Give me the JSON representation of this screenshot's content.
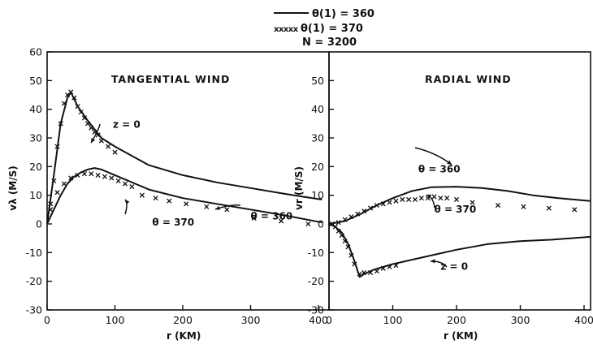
{
  "legend": {
    "entries": [
      {
        "label": "θ(1) = 360",
        "style": "solid line"
      },
      {
        "label": "θ(1) = 370",
        "style": "x markers"
      }
    ],
    "note": "N = 3200"
  },
  "chart_data": [
    {
      "type": "line",
      "title": "TANGENTIAL WIND",
      "xlabel": "r (KM)",
      "ylabel": "vλ (M/S)",
      "xlim": [
        0,
        450
      ],
      "ylim": [
        -30,
        60
      ],
      "xticks": [
        0,
        100,
        200,
        300,
        400
      ],
      "yticks": [
        -30,
        -20,
        -10,
        0,
        10,
        20,
        30,
        40,
        50,
        60
      ],
      "annotations": [
        {
          "text": "z = 0",
          "x": 97,
          "y": 33.5
        },
        {
          "text": "θ = 360",
          "x": 300,
          "y": 1.5
        },
        {
          "text": "θ = 370",
          "x": 155,
          "y": -0.5
        }
      ],
      "series": [
        {
          "style": "line",
          "x": [
            0,
            10,
            20,
            30,
            35,
            45,
            60,
            80,
            100,
            150,
            200,
            250,
            300,
            350,
            405
          ],
          "y": [
            0,
            17,
            35,
            44,
            46,
            41,
            36,
            30,
            27,
            20.5,
            17,
            14.5,
            12.5,
            10.5,
            8.5
          ]
        },
        {
          "style": "line",
          "x": [
            0,
            10,
            20,
            30,
            40,
            50,
            60,
            70,
            80,
            100,
            130,
            150,
            200,
            250,
            300,
            350,
            405
          ],
          "y": [
            0,
            5,
            10,
            14,
            16.5,
            18,
            19,
            19.5,
            19,
            17,
            14,
            12,
            9,
            7,
            5,
            3,
            0.5
          ]
        },
        {
          "style": "markers",
          "x": [
            5,
            10,
            15,
            20,
            25,
            30,
            35,
            40,
            45,
            50,
            55,
            60,
            65,
            70,
            75,
            80,
            90,
            100
          ],
          "y": [
            5,
            15,
            27,
            35,
            42,
            45,
            46,
            44,
            41,
            39,
            37,
            35,
            33.5,
            32,
            31,
            29,
            27,
            25
          ]
        },
        {
          "style": "markers",
          "x": [
            5,
            15,
            25,
            35,
            45,
            55,
            65,
            75,
            85,
            95,
            105,
            115,
            125,
            140,
            160,
            180,
            205,
            235,
            265,
            305,
            345,
            385
          ],
          "y": [
            7,
            11,
            14,
            16,
            17,
            17.5,
            17.5,
            17,
            16.5,
            16,
            15,
            14,
            13,
            10,
            9,
            8,
            7,
            6,
            5,
            2,
            1,
            0
          ]
        }
      ]
    },
    {
      "type": "line",
      "title": "RADIAL WIND",
      "xlabel": "r (KM)",
      "ylabel": "vr (M/S)",
      "xlim": [
        0,
        450
      ],
      "ylim": [
        -30,
        60
      ],
      "xticks": [
        0,
        100,
        200,
        300,
        400
      ],
      "yticks": [
        -30,
        -20,
        -10,
        0,
        10,
        20,
        30,
        40,
        50
      ],
      "annotations": [
        {
          "text": "θ = 360",
          "x": 140,
          "y": 18
        },
        {
          "text": "θ = 370",
          "x": 165,
          "y": 4
        },
        {
          "text": "z = 0",
          "x": 175,
          "y": -16
        }
      ],
      "series": [
        {
          "style": "line",
          "x": [
            0,
            25,
            50,
            75,
            100,
            130,
            160,
            200,
            240,
            280,
            320,
            360,
            410
          ],
          "y": [
            0,
            1,
            3.5,
            6.5,
            9,
            11.5,
            12.8,
            13,
            12.5,
            11.5,
            10,
            9,
            8
          ]
        },
        {
          "style": "line",
          "x": [
            0,
            10,
            20,
            30,
            40,
            48,
            55,
            70,
            100,
            150,
            200,
            250,
            300,
            350,
            410
          ],
          "y": [
            0,
            -1,
            -3,
            -7,
            -13,
            -18.5,
            -17.5,
            -16,
            -14,
            -11.5,
            -9,
            -7,
            -6,
            -5.5,
            -4.5
          ]
        },
        {
          "style": "markers",
          "x": [
            5,
            10,
            15,
            20,
            25,
            30,
            35,
            40,
            48,
            55,
            65,
            75,
            85,
            95,
            105
          ],
          "y": [
            0,
            -1,
            -2.5,
            -4,
            -6,
            -8,
            -11,
            -14,
            -17.5,
            -17,
            -17,
            -16.5,
            -15.5,
            -15,
            -14.5
          ]
        },
        {
          "style": "markers",
          "x": [
            5,
            15,
            25,
            35,
            45,
            55,
            65,
            75,
            85,
            95,
            105,
            115,
            125,
            135,
            145,
            155,
            165,
            175,
            185,
            200,
            225,
            265,
            305,
            345,
            385
          ],
          "y": [
            0,
            0.5,
            1.5,
            2.5,
            3.5,
            4.5,
            5.5,
            6.5,
            7,
            7.5,
            8,
            8.5,
            8.5,
            8.5,
            9,
            9,
            9.5,
            9,
            9,
            8.5,
            7.5,
            6.5,
            6,
            5.5,
            5
          ]
        }
      ]
    }
  ]
}
